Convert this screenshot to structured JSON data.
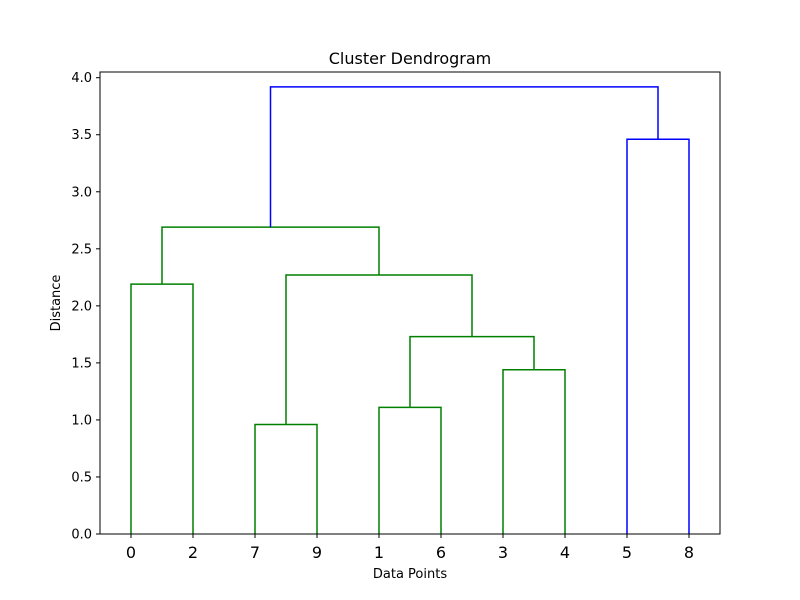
{
  "chart_data": {
    "type": "dendrogram",
    "title": "Cluster Dendrogram",
    "xlabel": "Data Points",
    "ylabel": "Distance",
    "ylim": [
      0,
      4.05
    ],
    "yticks": [
      0.0,
      0.5,
      1.0,
      1.5,
      2.0,
      2.5,
      3.0,
      3.5,
      4.0
    ],
    "ytick_labels": [
      "0.0",
      "0.5",
      "1.0",
      "1.5",
      "2.0",
      "2.5",
      "3.0",
      "3.5",
      "4.0"
    ],
    "leaves": [
      "0",
      "2",
      "7",
      "9",
      "1",
      "6",
      "3",
      "4",
      "5",
      "8"
    ],
    "grid": false,
    "colors": {
      "cluster_a": "#008000",
      "cluster_b": "#0000ff",
      "axes": "#000000"
    },
    "merges": [
      {
        "id": "m1",
        "left": "0",
        "right": "2",
        "height": 2.19,
        "color": "#008000"
      },
      {
        "id": "m2",
        "left": "7",
        "right": "9",
        "height": 0.96,
        "color": "#008000"
      },
      {
        "id": "m3",
        "left": "1",
        "right": "6",
        "height": 1.11,
        "color": "#008000"
      },
      {
        "id": "m4",
        "left": "3",
        "right": "4",
        "height": 1.44,
        "color": "#008000"
      },
      {
        "id": "m5",
        "left": "m3",
        "right": "m4",
        "height": 1.73,
        "color": "#008000"
      },
      {
        "id": "m6",
        "left": "m2",
        "right": "m5",
        "height": 2.27,
        "color": "#008000"
      },
      {
        "id": "m7",
        "left": "m1",
        "right": "m6",
        "height": 2.69,
        "color": "#008000"
      },
      {
        "id": "m8",
        "left": "5",
        "right": "8",
        "height": 3.46,
        "color": "#0000ff"
      },
      {
        "id": "m9",
        "left": "m7",
        "right": "m8",
        "height": 3.92,
        "color": "#0000ff"
      }
    ]
  }
}
